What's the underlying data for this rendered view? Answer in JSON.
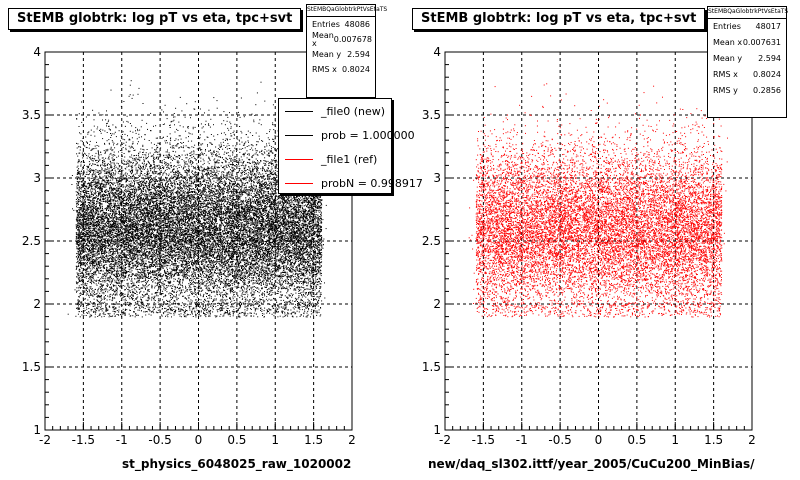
{
  "chart_data": [
    {
      "type": "scatter",
      "title": "StEMB globtrk: log pT vs eta, tpc+svt",
      "xlabel": "st_physics_6048025_raw_1020002",
      "ylabel": "",
      "xlim": [
        -2,
        2
      ],
      "ylim": [
        1,
        4
      ],
      "xticks": [
        "-2",
        "-1.5",
        "-1",
        "-0.5",
        "0",
        "0.5",
        "1",
        "1.5",
        "2"
      ],
      "yticks": [
        "1",
        "1.5",
        "2",
        "2.5",
        "3",
        "3.5",
        "4"
      ],
      "grid": true,
      "marker_color": "#000000",
      "stats": {
        "name": "StEMBQaGlobtrkPtVsEtaTS",
        "entries_label": "Entries",
        "entries": "48086",
        "meanx_label": "Mean x",
        "meanx": "0.007678",
        "meany_label": "Mean y",
        "meany": "2.594",
        "rmsx_label": "RMS x",
        "rmsx": "0.8024"
      },
      "legend": {
        "position": "top-right",
        "entries": [
          {
            "label": "_file0 (new)",
            "color": "#000000"
          },
          {
            "label": "prob = 1.000000",
            "color": "#000000"
          },
          {
            "label": "_file1 (ref)",
            "color": "#ff0000"
          },
          {
            "label": "probN = 0.998917",
            "color": "#ff0000"
          }
        ]
      },
      "distribution": {
        "x_min": -1.6,
        "x_max": 1.6,
        "y_center": 2.594,
        "y_rms": 0.2856,
        "y_min": 1.9,
        "y_max": 3.8
      }
    },
    {
      "type": "scatter",
      "title": "StEMB globtrk: log pT vs eta, tpc+svt",
      "xlabel": "new/daq_sl302.ittf/year_2005/CuCu200_MinBias/",
      "ylabel": "",
      "xlim": [
        -2,
        2
      ],
      "ylim": [
        1,
        4
      ],
      "xticks": [
        "-2",
        "-1.5",
        "-1",
        "-0.5",
        "0",
        "0.5",
        "1",
        "1.5",
        "2"
      ],
      "yticks": [
        "1",
        "1.5",
        "2",
        "2.5",
        "3",
        "3.5",
        "4"
      ],
      "grid": true,
      "marker_color": "#ff0000",
      "stats": {
        "name": "StEMBQaGlobtrkPtVsEtaTS",
        "entries_label": "Entries",
        "entries": "48017",
        "meanx_label": "Mean x",
        "meanx": "0.007631",
        "meany_label": "Mean y",
        "meany": "2.594",
        "rmsx_label": "RMS x",
        "rmsx": "0.8024",
        "rmsy_label": "RMS y",
        "rmsy": "0.2856"
      },
      "distribution": {
        "x_min": -1.6,
        "x_max": 1.6,
        "y_center": 2.594,
        "y_rms": 0.2856,
        "y_min": 1.9,
        "y_max": 3.8
      }
    }
  ]
}
